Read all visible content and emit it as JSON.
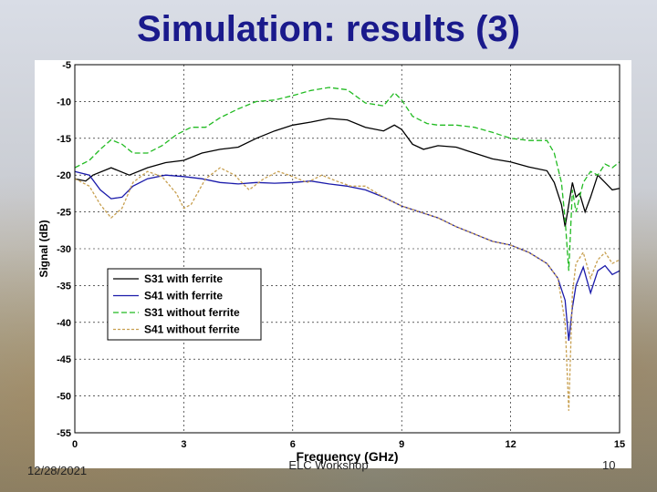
{
  "slide": {
    "title": "Simulation: results (3)",
    "date": "12/28/2021",
    "footer_center": "ELC Workshop",
    "page_number": "10"
  },
  "chart_data": {
    "type": "line",
    "xlabel": "Frequency (GHz)",
    "ylabel": "Signal (dB)",
    "xlim": [
      0,
      15
    ],
    "ylim": [
      -55,
      -5
    ],
    "xticks": [
      0,
      3,
      6,
      9,
      12,
      15
    ],
    "yticks": [
      -5,
      -10,
      -15,
      -20,
      -25,
      -30,
      -35,
      -40,
      -45,
      -50,
      -55
    ],
    "grid": true,
    "legend_position": "lower-left",
    "series": [
      {
        "name": "S31 with ferrite",
        "color": "#000000",
        "dash": "solid",
        "points": [
          [
            0,
            -20.5
          ],
          [
            0.3,
            -20.8
          ],
          [
            0.5,
            -20
          ],
          [
            1,
            -19
          ],
          [
            1.5,
            -20
          ],
          [
            2,
            -19
          ],
          [
            2.5,
            -18.3
          ],
          [
            3,
            -18
          ],
          [
            3.5,
            -17
          ],
          [
            4,
            -16.5
          ],
          [
            4.5,
            -16.2
          ],
          [
            5,
            -15
          ],
          [
            5.5,
            -14
          ],
          [
            6,
            -13.2
          ],
          [
            6.5,
            -12.8
          ],
          [
            7,
            -12.3
          ],
          [
            7.5,
            -12.5
          ],
          [
            8,
            -13.5
          ],
          [
            8.5,
            -14
          ],
          [
            8.8,
            -13.2
          ],
          [
            9,
            -13.8
          ],
          [
            9.3,
            -15.8
          ],
          [
            9.6,
            -16.5
          ],
          [
            10,
            -16
          ],
          [
            10.5,
            -16.2
          ],
          [
            11,
            -17
          ],
          [
            11.5,
            -17.8
          ],
          [
            12,
            -18.2
          ],
          [
            12.5,
            -18.9
          ],
          [
            13,
            -19.4
          ],
          [
            13.2,
            -21
          ],
          [
            13.4,
            -24
          ],
          [
            13.5,
            -27
          ],
          [
            13.6,
            -24
          ],
          [
            13.7,
            -21
          ],
          [
            13.8,
            -23
          ],
          [
            13.9,
            -22.5
          ],
          [
            14.05,
            -25
          ],
          [
            14.2,
            -23
          ],
          [
            14.4,
            -20
          ],
          [
            14.6,
            -21
          ],
          [
            14.8,
            -22
          ],
          [
            15,
            -21.8
          ]
        ]
      },
      {
        "name": "S41 with ferrite",
        "color": "#1a1aaa",
        "dash": "solid",
        "points": [
          [
            0,
            -19.5
          ],
          [
            0.4,
            -20
          ],
          [
            0.7,
            -22
          ],
          [
            1,
            -23.2
          ],
          [
            1.3,
            -23
          ],
          [
            1.6,
            -21.5
          ],
          [
            2,
            -20.5
          ],
          [
            2.5,
            -20
          ],
          [
            3,
            -20.2
          ],
          [
            3.5,
            -20.5
          ],
          [
            4,
            -21
          ],
          [
            4.5,
            -21.2
          ],
          [
            5,
            -21
          ],
          [
            5.5,
            -21.1
          ],
          [
            6,
            -21
          ],
          [
            6.5,
            -20.8
          ],
          [
            7,
            -21.2
          ],
          [
            7.5,
            -21.5
          ],
          [
            8,
            -22
          ],
          [
            8.5,
            -23
          ],
          [
            9,
            -24.2
          ],
          [
            9.5,
            -25
          ],
          [
            10,
            -25.8
          ],
          [
            10.5,
            -27
          ],
          [
            11,
            -28
          ],
          [
            11.5,
            -29
          ],
          [
            12,
            -29.5
          ],
          [
            12.5,
            -30.5
          ],
          [
            13,
            -32
          ],
          [
            13.3,
            -34
          ],
          [
            13.5,
            -37
          ],
          [
            13.6,
            -42.5
          ],
          [
            13.7,
            -38
          ],
          [
            13.8,
            -35
          ],
          [
            14,
            -32.5
          ],
          [
            14.2,
            -36
          ],
          [
            14.4,
            -33
          ],
          [
            14.6,
            -32.3
          ],
          [
            14.8,
            -33.5
          ],
          [
            15,
            -33
          ]
        ]
      },
      {
        "name": "S31 without ferrite",
        "color": "#22bb22",
        "dash": "6,3",
        "points": [
          [
            0,
            -19
          ],
          [
            0.4,
            -18
          ],
          [
            0.7,
            -16.5
          ],
          [
            1,
            -15.2
          ],
          [
            1.3,
            -15.8
          ],
          [
            1.6,
            -17
          ],
          [
            2,
            -17
          ],
          [
            2.4,
            -16
          ],
          [
            2.8,
            -14.5
          ],
          [
            3.2,
            -13.5
          ],
          [
            3.6,
            -13.5
          ],
          [
            4,
            -12.2
          ],
          [
            4.5,
            -11
          ],
          [
            5,
            -10
          ],
          [
            5.5,
            -9.8
          ],
          [
            6,
            -9.2
          ],
          [
            6.5,
            -8.5
          ],
          [
            7,
            -8.1
          ],
          [
            7.5,
            -8.4
          ],
          [
            8,
            -10.2
          ],
          [
            8.5,
            -10.6
          ],
          [
            8.8,
            -8.8
          ],
          [
            9,
            -9.8
          ],
          [
            9.3,
            -12
          ],
          [
            9.7,
            -13
          ],
          [
            10,
            -13.2
          ],
          [
            10.5,
            -13.2
          ],
          [
            11,
            -13.5
          ],
          [
            11.5,
            -14.2
          ],
          [
            12,
            -15
          ],
          [
            12.5,
            -15.3
          ],
          [
            13,
            -15.3
          ],
          [
            13.2,
            -17
          ],
          [
            13.4,
            -21
          ],
          [
            13.5,
            -26
          ],
          [
            13.6,
            -33
          ],
          [
            13.7,
            -22
          ],
          [
            13.8,
            -25
          ],
          [
            14,
            -21
          ],
          [
            14.2,
            -19.5
          ],
          [
            14.4,
            -20
          ],
          [
            14.6,
            -18.5
          ],
          [
            14.8,
            -19
          ],
          [
            15,
            -18.2
          ]
        ]
      },
      {
        "name": "S41 without ferrite",
        "color": "#c8a050",
        "dash": "3,2",
        "points": [
          [
            0,
            -20.5
          ],
          [
            0.4,
            -21.5
          ],
          [
            0.7,
            -24
          ],
          [
            1,
            -25.8
          ],
          [
            1.3,
            -24.5
          ],
          [
            1.6,
            -21
          ],
          [
            2,
            -19.5
          ],
          [
            2.4,
            -20.2
          ],
          [
            2.8,
            -22.5
          ],
          [
            3,
            -24.5
          ],
          [
            3.2,
            -24
          ],
          [
            3.6,
            -20.5
          ],
          [
            4,
            -19
          ],
          [
            4.4,
            -20
          ],
          [
            4.8,
            -22
          ],
          [
            5.2,
            -20.5
          ],
          [
            5.6,
            -19.5
          ],
          [
            6,
            -20.2
          ],
          [
            6.4,
            -21
          ],
          [
            6.8,
            -20
          ],
          [
            7.2,
            -20.8
          ],
          [
            7.6,
            -21.5
          ],
          [
            8,
            -21.5
          ],
          [
            8.5,
            -23
          ],
          [
            9,
            -24.2
          ],
          [
            9.5,
            -25
          ],
          [
            10,
            -25.8
          ],
          [
            10.5,
            -27
          ],
          [
            11,
            -28
          ],
          [
            11.5,
            -29
          ],
          [
            12,
            -29.5
          ],
          [
            12.5,
            -30.5
          ],
          [
            13,
            -32
          ],
          [
            13.3,
            -34
          ],
          [
            13.5,
            -40
          ],
          [
            13.6,
            -52
          ],
          [
            13.7,
            -36
          ],
          [
            13.8,
            -32
          ],
          [
            14,
            -30.5
          ],
          [
            14.2,
            -34
          ],
          [
            14.4,
            -31.5
          ],
          [
            14.6,
            -30.5
          ],
          [
            14.8,
            -32
          ],
          [
            15,
            -31.5
          ]
        ]
      }
    ]
  }
}
